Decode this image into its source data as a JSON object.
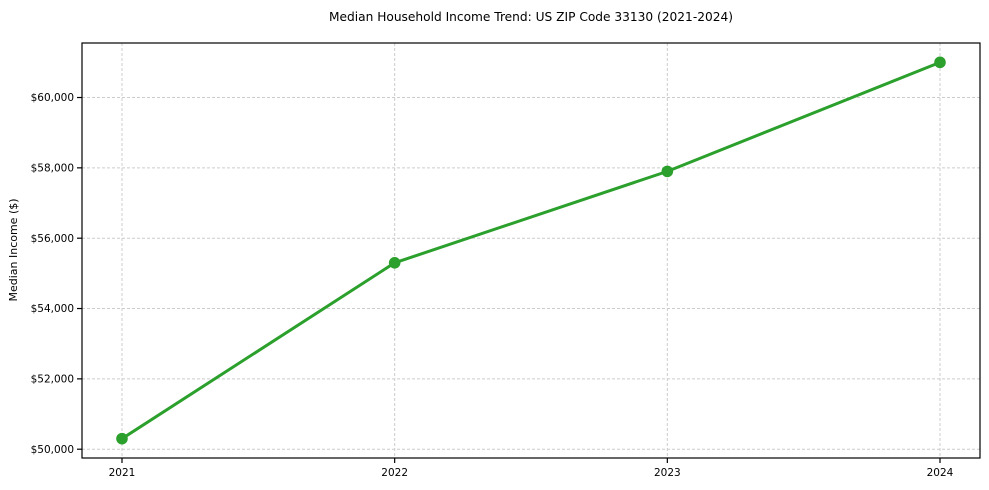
{
  "chart_data": {
    "type": "line",
    "title": "Median Household Income Trend: US ZIP Code 33130 (2021-2024)",
    "xlabel": "",
    "ylabel": "Median Income ($)",
    "categories": [
      "2021",
      "2022",
      "2023",
      "2024"
    ],
    "values": [
      50300,
      55300,
      57900,
      61000
    ],
    "ylim": [
      49750,
      61550
    ],
    "ytick_values": [
      50000,
      52000,
      54000,
      56000,
      58000,
      60000
    ],
    "ytick_labels": [
      "$50,000",
      "$52,000",
      "$54,000",
      "$56,000",
      "$58,000",
      "$60,000"
    ],
    "grid": true,
    "grid_style": "dashed",
    "legend": false,
    "line_color": "#2ca02c",
    "marker": "circle",
    "grid_color": "#cccccc",
    "background_color": "#ffffff",
    "text_color": "#000000"
  }
}
